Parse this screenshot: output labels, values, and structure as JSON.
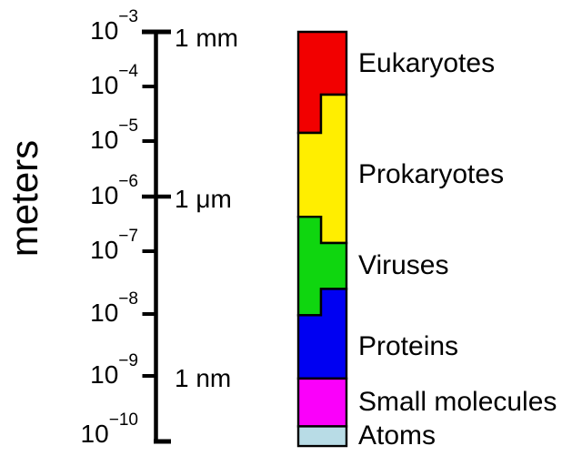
{
  "figure": {
    "background": "#ffffff",
    "text_color": "#000000"
  },
  "chart_data": {
    "type": "bar",
    "subtype": "logarithmic-size-range-chart",
    "title": "",
    "ylabel": "meters",
    "scale": "log10",
    "ylim_exponents": [
      -3,
      -10
    ],
    "axis": {
      "tick_exponents": [
        -3,
        -4,
        -5,
        -6,
        -7,
        -8,
        -9,
        -10
      ],
      "tick_labels": [
        "10⁻³",
        "10⁻⁴",
        "10⁻⁵",
        "10⁻⁶",
        "10⁻⁷",
        "10⁻⁸",
        "10⁻⁹",
        "10⁻¹⁰"
      ],
      "major_tick_exponents": [
        -3,
        -6
      ],
      "unit_annotations": [
        {
          "at_exponent": -3,
          "label": "1 mm"
        },
        {
          "at_exponent": -6,
          "label": "1 μm"
        },
        {
          "at_exponent": -9,
          "label": "1 nm"
        }
      ]
    },
    "outline_color": "#000000",
    "categories": [
      "Eukaryotes",
      "Prokaryotes",
      "Viruses",
      "Proteins",
      "Small molecules",
      "Atoms"
    ],
    "segments": [
      {
        "label": "Eukaryotes",
        "color": "#f20000",
        "range_log10_m": [
          -4.85,
          -3.0
        ],
        "parts": [
          {
            "side": "full",
            "from": -3.0,
            "to": -4.15
          },
          {
            "side": "left",
            "from": -4.15,
            "to": -4.85
          }
        ]
      },
      {
        "label": "Prokaryotes",
        "color": "#ffee00",
        "range_log10_m": [
          -6.85,
          -4.15
        ],
        "parts": [
          {
            "side": "right",
            "from": -4.15,
            "to": -4.85
          },
          {
            "side": "full",
            "from": -4.85,
            "to": -6.37
          },
          {
            "side": "right",
            "from": -6.37,
            "to": -6.85
          }
        ]
      },
      {
        "label": "Viruses",
        "color": "#0fd60f",
        "range_log10_m": [
          -8.02,
          -6.37
        ],
        "parts": [
          {
            "side": "left",
            "from": -6.37,
            "to": -6.85
          },
          {
            "side": "full",
            "from": -6.85,
            "to": -7.6
          },
          {
            "side": "left",
            "from": -7.6,
            "to": -8.02
          }
        ]
      },
      {
        "label": "Proteins",
        "color": "#0000f2",
        "range_log10_m": [
          -9.04,
          -7.6
        ],
        "parts": [
          {
            "side": "right",
            "from": -7.6,
            "to": -8.02
          },
          {
            "side": "full",
            "from": -8.02,
            "to": -9.04
          }
        ]
      },
      {
        "label": "Small molecules",
        "color": "#fa00fa",
        "range_log10_m": [
          -9.77,
          -9.04
        ],
        "parts": [
          {
            "side": "full",
            "from": -9.04,
            "to": -9.77
          }
        ]
      },
      {
        "label": "Atoms",
        "color": "#b8dce6",
        "range_log10_m": [
          -10.07,
          -9.77
        ],
        "parts": [
          {
            "side": "full",
            "from": -9.77,
            "to": -10.07
          }
        ]
      }
    ]
  }
}
